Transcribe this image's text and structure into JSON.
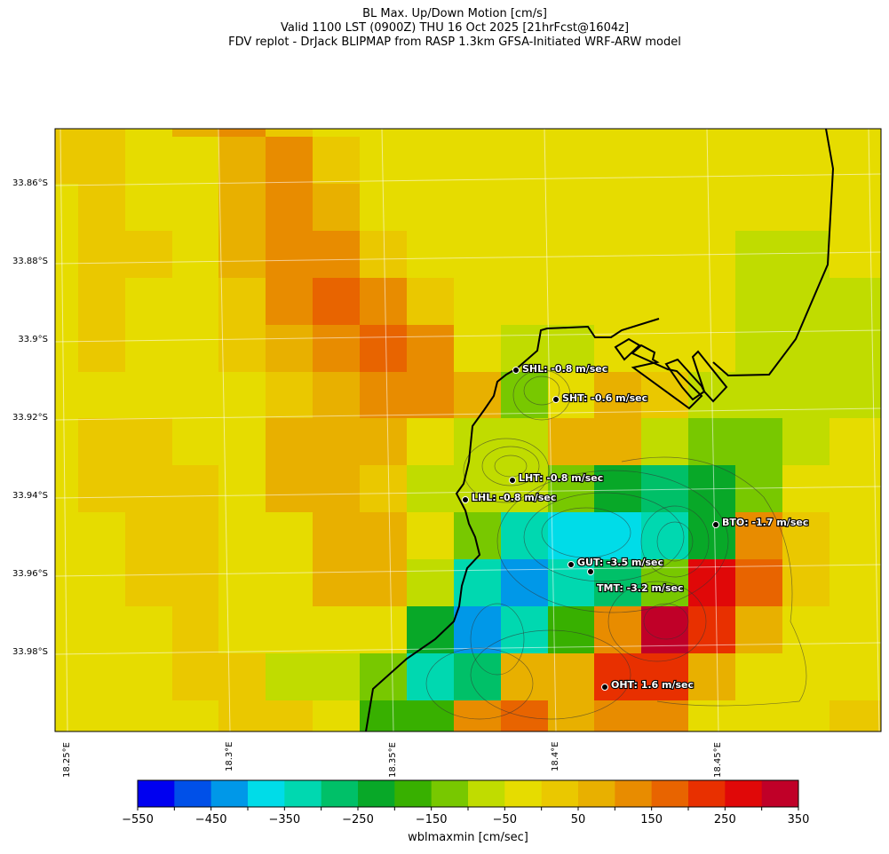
{
  "header": {
    "line1": "BL Max. Up/Down Motion [cm/s]",
    "line2": "Valid 1100 LST (0900Z) THU 16 Oct 2025 [21hrFcst@1604z]",
    "line3": "FDV replot - DrJack BLIPMAP from RASP 1.3km GFSA-Initiated WRF-ARW model"
  },
  "axes": {
    "lat_labels": [
      "33.86°S",
      "33.88°S",
      "33.9°S",
      "33.92°S",
      "33.94°S",
      "33.96°S",
      "33.98°S"
    ],
    "lon_labels": [
      "18.25°E",
      "18.3°E",
      "18.35°E",
      "18.4°E",
      "18.45°E"
    ]
  },
  "stations": [
    {
      "label": "SHL: -0.8 m/sec"
    },
    {
      "label": "SHT: -0.6 m/sec"
    },
    {
      "label": "LHT: -0.8 m/sec"
    },
    {
      "label": "LHL: -0.8 m/sec"
    },
    {
      "label": "BTO: -1.7 m/sec"
    },
    {
      "label": "GUT: -3.5 m/sec"
    },
    {
      "label": "TMT: -3.2 m/sec"
    },
    {
      "label": "OHT: 1.6 m/sec"
    }
  ],
  "colorbar": {
    "label": "wblmaxmin [cm/sec]",
    "tick_labels": [
      "−550",
      "−450",
      "−350",
      "−250",
      "−150",
      "−50",
      "50",
      "150",
      "250",
      "350"
    ],
    "bounds": [
      -550,
      350
    ],
    "step": 50,
    "colors": [
      "#0000F0",
      "#0050E8",
      "#0098E8",
      "#00DCE8",
      "#00D8B0",
      "#00C068",
      "#08A828",
      "#38B000",
      "#78C800",
      "#C0DC00",
      "#E6DC00",
      "#EAC800",
      "#E8B000",
      "#E88C00",
      "#E86400",
      "#E83000",
      "#E00808",
      "#C00028"
    ]
  },
  "chart_data": {
    "type": "heatmap",
    "title": "BL Max. Up/Down Motion [cm/s]",
    "value_encoding": "colorbar bin index (0 = -550..-500 cm/s, 17 = 300..350 cm/s)",
    "grid": [
      [
        11,
        11,
        10,
        12,
        13,
        11,
        10,
        10,
        10,
        10,
        10,
        10,
        10,
        10,
        10,
        10,
        10,
        10,
        10
      ],
      [
        11,
        11,
        10,
        10,
        12,
        13,
        11,
        10,
        10,
        10,
        10,
        10,
        10,
        10,
        10,
        10,
        10,
        10,
        10
      ],
      [
        10,
        11,
        10,
        10,
        12,
        13,
        12,
        10,
        10,
        10,
        10,
        10,
        10,
        10,
        10,
        10,
        10,
        10,
        10
      ],
      [
        10,
        11,
        11,
        10,
        12,
        13,
        13,
        11,
        10,
        10,
        10,
        10,
        10,
        10,
        10,
        9,
        9,
        10,
        10
      ],
      [
        10,
        11,
        10,
        10,
        11,
        13,
        14,
        13,
        11,
        10,
        10,
        10,
        10,
        10,
        10,
        9,
        9,
        9,
        9
      ],
      [
        10,
        11,
        10,
        10,
        11,
        12,
        13,
        14,
        13,
        10,
        9,
        9,
        10,
        10,
        10,
        9,
        9,
        9,
        9
      ],
      [
        10,
        10,
        10,
        10,
        10,
        11,
        12,
        13,
        13,
        12,
        8,
        10,
        12,
        11,
        9,
        9,
        9,
        9,
        9
      ],
      [
        10,
        11,
        11,
        10,
        10,
        12,
        12,
        12,
        10,
        9,
        9,
        12,
        12,
        9,
        8,
        8,
        9,
        10,
        10
      ],
      [
        10,
        11,
        11,
        11,
        10,
        12,
        12,
        11,
        9,
        9,
        9,
        8,
        6,
        5,
        6,
        8,
        10,
        10,
        10
      ],
      [
        10,
        10,
        11,
        11,
        10,
        10,
        12,
        12,
        10,
        8,
        4,
        3,
        3,
        4,
        6,
        13,
        11,
        10,
        10
      ],
      [
        10,
        10,
        11,
        11,
        10,
        10,
        12,
        12,
        9,
        4,
        2,
        4,
        5,
        8,
        16,
        14,
        11,
        10,
        10
      ],
      [
        10,
        10,
        10,
        11,
        10,
        10,
        10,
        10,
        6,
        2,
        4,
        7,
        13,
        17,
        15,
        12,
        10,
        10,
        10
      ],
      [
        10,
        10,
        10,
        11,
        11,
        9,
        9,
        8,
        4,
        5,
        12,
        12,
        15,
        15,
        12,
        10,
        10,
        10,
        10
      ],
      [
        10,
        10,
        10,
        10,
        11,
        11,
        10,
        7,
        7,
        13,
        14,
        12,
        13,
        13,
        10,
        10,
        10,
        11,
        11
      ]
    ]
  }
}
